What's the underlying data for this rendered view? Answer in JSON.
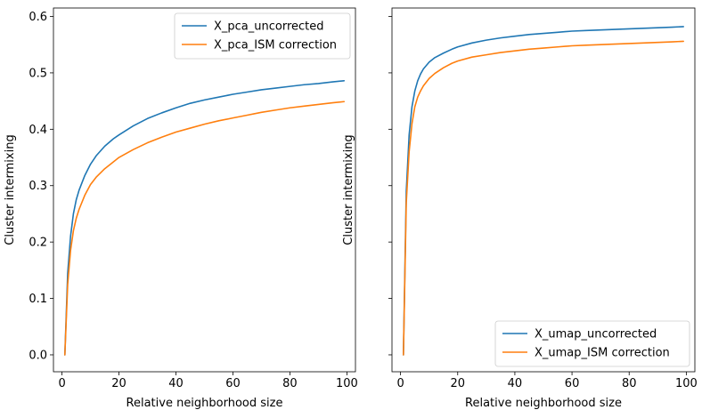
{
  "chart_data": [
    {
      "type": "line",
      "xlabel": "Relative neighborhood size",
      "ylabel": "Cluster intermixing",
      "xlim": [
        -3,
        103
      ],
      "ylim": [
        -0.03,
        0.615
      ],
      "xticks": [
        0,
        20,
        40,
        60,
        80,
        100
      ],
      "xtick_labels": [
        "0",
        "20",
        "40",
        "60",
        "80",
        "100"
      ],
      "yticks": [
        0.0,
        0.1,
        0.2,
        0.3,
        0.4,
        0.5,
        0.6
      ],
      "ytick_labels": [
        "0.0",
        "0.1",
        "0.2",
        "0.3",
        "0.4",
        "0.5",
        "0.6"
      ],
      "legend_position": "top-right",
      "grid": false,
      "series": [
        {
          "name": "X_pca_uncorrected",
          "color": "#1f77b4",
          "x": [
            1,
            2,
            3,
            4,
            5,
            6,
            8,
            10,
            12,
            15,
            18,
            20,
            25,
            30,
            35,
            40,
            45,
            50,
            55,
            60,
            65,
            70,
            75,
            80,
            85,
            90,
            95,
            99
          ],
          "y": [
            0.0,
            0.145,
            0.21,
            0.25,
            0.275,
            0.292,
            0.318,
            0.338,
            0.353,
            0.37,
            0.383,
            0.39,
            0.406,
            0.419,
            0.429,
            0.438,
            0.446,
            0.452,
            0.457,
            0.462,
            0.466,
            0.47,
            0.473,
            0.476,
            0.479,
            0.481,
            0.484,
            0.486
          ]
        },
        {
          "name": "X_pca_ISM correction",
          "color": "#ff7f0e",
          "x": [
            1,
            2,
            3,
            4,
            5,
            6,
            8,
            10,
            12,
            15,
            18,
            20,
            25,
            30,
            35,
            40,
            45,
            50,
            55,
            60,
            65,
            70,
            75,
            80,
            85,
            90,
            95,
            99
          ],
          "y": [
            0.0,
            0.125,
            0.185,
            0.22,
            0.242,
            0.258,
            0.283,
            0.302,
            0.315,
            0.33,
            0.342,
            0.35,
            0.364,
            0.376,
            0.386,
            0.395,
            0.402,
            0.409,
            0.415,
            0.42,
            0.425,
            0.43,
            0.434,
            0.438,
            0.441,
            0.444,
            0.447,
            0.449
          ]
        }
      ]
    },
    {
      "type": "line",
      "xlabel": "Relative neighborhood size",
      "ylabel": "Cluster intermixing",
      "xlim": [
        -3,
        103
      ],
      "ylim": [
        -0.03,
        0.615
      ],
      "xticks": [
        0,
        20,
        40,
        60,
        80,
        100
      ],
      "xtick_labels": [
        "0",
        "20",
        "40",
        "60",
        "80",
        "100"
      ],
      "yticks": [
        0.0,
        0.1,
        0.2,
        0.3,
        0.4,
        0.5,
        0.6
      ],
      "ytick_labels": [
        "",
        "",
        "",
        "",
        "",
        "",
        ""
      ],
      "legend_position": "bottom-right",
      "grid": false,
      "series": [
        {
          "name": "X_umap_uncorrected",
          "color": "#1f77b4",
          "x": [
            1,
            2,
            3,
            4,
            5,
            6,
            7,
            8,
            10,
            12,
            15,
            18,
            20,
            25,
            30,
            35,
            40,
            45,
            50,
            55,
            60,
            65,
            70,
            75,
            80,
            85,
            90,
            95,
            99
          ],
          "y": [
            0.0,
            0.29,
            0.39,
            0.44,
            0.468,
            0.486,
            0.498,
            0.507,
            0.519,
            0.527,
            0.535,
            0.542,
            0.546,
            0.553,
            0.558,
            0.562,
            0.565,
            0.568,
            0.57,
            0.572,
            0.574,
            0.575,
            0.576,
            0.577,
            0.578,
            0.579,
            0.58,
            0.581,
            0.582
          ]
        },
        {
          "name": "X_umap_ISM correction",
          "color": "#ff7f0e",
          "x": [
            1,
            2,
            3,
            4,
            5,
            6,
            7,
            8,
            10,
            12,
            15,
            18,
            20,
            25,
            30,
            35,
            40,
            45,
            50,
            55,
            60,
            65,
            70,
            75,
            80,
            85,
            90,
            95,
            99
          ],
          "y": [
            0.0,
            0.27,
            0.36,
            0.41,
            0.44,
            0.457,
            0.468,
            0.477,
            0.49,
            0.499,
            0.509,
            0.517,
            0.521,
            0.528,
            0.532,
            0.536,
            0.539,
            0.542,
            0.544,
            0.546,
            0.548,
            0.549,
            0.55,
            0.551,
            0.552,
            0.553,
            0.554,
            0.555,
            0.556
          ]
        }
      ]
    }
  ]
}
